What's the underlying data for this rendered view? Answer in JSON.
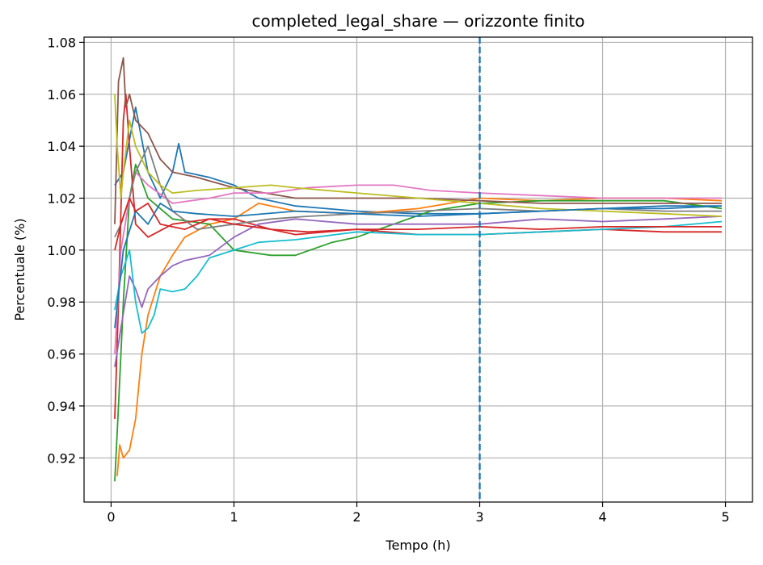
{
  "chart_data": {
    "type": "line",
    "title": "completed_legal_share — orizzonte finito",
    "xlabel": "Tempo (h)",
    "ylabel": "Percentuale (%)",
    "xlim": [
      -0.22,
      5.22
    ],
    "ylim": [
      0.903,
      1.082
    ],
    "xticks": [
      0,
      1,
      2,
      3,
      4,
      5
    ],
    "xtick_labels": [
      "0",
      "1",
      "2",
      "3",
      "4",
      "5"
    ],
    "yticks": [
      0.92,
      0.94,
      0.96,
      0.98,
      1.0,
      1.02,
      1.04,
      1.06,
      1.08
    ],
    "ytick_labels": [
      "0.92",
      "0.94",
      "0.96",
      "0.98",
      "1.00",
      "1.02",
      "1.04",
      "1.06",
      "1.08"
    ],
    "grid": true,
    "vline": {
      "x": 3.0,
      "style": "dashed",
      "color": "#1f77b4"
    },
    "series": [
      {
        "color": "#1f77b4",
        "x": [
          0.03,
          0.1,
          0.2,
          0.3,
          0.4,
          0.5,
          0.55,
          0.6,
          0.7,
          0.8,
          1.0,
          1.2,
          1.5,
          2.0,
          2.5,
          3.0,
          3.5,
          4.0,
          4.5,
          4.97
        ],
        "y": [
          1.025,
          1.03,
          1.055,
          1.03,
          1.02,
          1.03,
          1.041,
          1.03,
          1.029,
          1.028,
          1.025,
          1.02,
          1.017,
          1.015,
          1.014,
          1.014,
          1.015,
          1.016,
          1.017,
          1.017
        ]
      },
      {
        "color": "#ff7f0e",
        "x": [
          0.05,
          0.07,
          0.1,
          0.15,
          0.2,
          0.25,
          0.3,
          0.4,
          0.5,
          0.6,
          0.8,
          1.0,
          1.2,
          1.5,
          2.0,
          2.5,
          3.0,
          3.5,
          4.0,
          4.5,
          4.97
        ],
        "y": [
          0.913,
          0.925,
          0.92,
          0.923,
          0.935,
          0.96,
          0.975,
          0.99,
          0.998,
          1.005,
          1.01,
          1.012,
          1.018,
          1.015,
          1.014,
          1.016,
          1.02,
          1.019,
          1.02,
          1.02,
          1.019
        ]
      },
      {
        "color": "#2ca02c",
        "x": [
          0.03,
          0.06,
          0.1,
          0.15,
          0.2,
          0.3,
          0.5,
          0.8,
          1.0,
          1.3,
          1.5,
          1.8,
          2.0,
          2.3,
          2.6,
          3.0,
          3.5,
          4.0,
          4.5,
          4.97
        ],
        "y": [
          0.911,
          0.94,
          0.98,
          1.02,
          1.033,
          1.02,
          1.012,
          1.01,
          1.0,
          0.998,
          0.998,
          1.003,
          1.005,
          1.01,
          1.015,
          1.018,
          1.019,
          1.019,
          1.019,
          1.016
        ]
      },
      {
        "color": "#d62728",
        "x": [
          0.03,
          0.06,
          0.1,
          0.12,
          0.15,
          0.2,
          0.3,
          0.5,
          0.8,
          1.0,
          1.3,
          1.5,
          2.0,
          2.5,
          3.0,
          3.5,
          4.0,
          4.5,
          4.97
        ],
        "y": [
          0.935,
          0.98,
          1.05,
          1.06,
          1.04,
          1.01,
          1.005,
          1.01,
          1.012,
          1.012,
          1.008,
          1.006,
          1.008,
          1.006,
          1.006,
          1.007,
          1.008,
          1.007,
          1.007
        ]
      },
      {
        "color": "#9467bd",
        "x": [
          0.03,
          0.08,
          0.15,
          0.2,
          0.25,
          0.3,
          0.4,
          0.5,
          0.6,
          0.8,
          1.0,
          1.2,
          1.5,
          2.0,
          2.5,
          3.0,
          3.5,
          4.0,
          4.5,
          4.97
        ],
        "y": [
          0.955,
          0.97,
          0.99,
          0.985,
          0.978,
          0.985,
          0.99,
          0.994,
          0.996,
          0.998,
          1.005,
          1.01,
          1.012,
          1.01,
          1.01,
          1.01,
          1.012,
          1.011,
          1.012,
          1.013
        ]
      },
      {
        "color": "#8c564b",
        "x": [
          0.03,
          0.06,
          0.1,
          0.12,
          0.15,
          0.2,
          0.3,
          0.4,
          0.5,
          0.7,
          1.0,
          1.5,
          2.0,
          2.5,
          3.0,
          3.5,
          4.0,
          4.5,
          4.97
        ],
        "y": [
          1.01,
          1.065,
          1.074,
          1.055,
          1.06,
          1.05,
          1.045,
          1.035,
          1.03,
          1.028,
          1.024,
          1.02,
          1.02,
          1.02,
          1.019,
          1.018,
          1.018,
          1.018,
          1.018
        ]
      },
      {
        "color": "#e377c2",
        "x": [
          0.03,
          0.08,
          0.15,
          0.2,
          0.3,
          0.5,
          0.8,
          1.0,
          1.3,
          1.6,
          2.0,
          2.3,
          2.6,
          3.0,
          3.5,
          4.0,
          4.5,
          4.97
        ],
        "y": [
          0.96,
          1.0,
          1.02,
          1.03,
          1.025,
          1.018,
          1.02,
          1.022,
          1.022,
          1.024,
          1.025,
          1.025,
          1.023,
          1.022,
          1.021,
          1.02,
          1.02,
          1.02
        ]
      },
      {
        "color": "#7f7f7f",
        "x": [
          0.03,
          0.08,
          0.15,
          0.2,
          0.3,
          0.4,
          0.5,
          0.7,
          1.0,
          1.3,
          1.6,
          2.0,
          2.5,
          3.0,
          3.5,
          4.0,
          4.5,
          4.97
        ],
        "y": [
          1.005,
          1.01,
          1.02,
          1.03,
          1.04,
          1.025,
          1.015,
          1.008,
          1.01,
          1.012,
          1.013,
          1.014,
          1.015,
          1.016,
          1.015,
          1.016,
          1.015,
          1.015
        ]
      },
      {
        "color": "#bcbd22",
        "x": [
          0.03,
          0.05,
          0.08,
          0.1,
          0.15,
          0.2,
          0.3,
          0.4,
          0.5,
          0.7,
          1.0,
          1.3,
          1.5,
          2.0,
          2.5,
          3.0,
          3.5,
          4.0,
          4.5,
          4.97
        ],
        "y": [
          1.06,
          1.04,
          1.02,
          1.03,
          1.05,
          1.04,
          1.03,
          1.025,
          1.022,
          1.023,
          1.024,
          1.025,
          1.024,
          1.022,
          1.02,
          1.018,
          1.016,
          1.015,
          1.014,
          1.013
        ]
      },
      {
        "color": "#17becf",
        "x": [
          0.03,
          0.08,
          0.15,
          0.2,
          0.25,
          0.3,
          0.35,
          0.4,
          0.5,
          0.6,
          0.7,
          0.8,
          1.0,
          1.2,
          1.5,
          2.0,
          2.5,
          3.0,
          3.5,
          4.0,
          4.5,
          4.97
        ],
        "y": [
          0.977,
          0.99,
          1.0,
          0.98,
          0.968,
          0.97,
          0.975,
          0.985,
          0.984,
          0.985,
          0.99,
          0.997,
          1.0,
          1.003,
          1.004,
          1.007,
          1.006,
          1.006,
          1.007,
          1.008,
          1.009,
          1.011
        ]
      },
      {
        "color": "#1f77b4",
        "x": [
          0.03,
          0.1,
          0.2,
          0.3,
          0.4,
          0.5,
          0.7,
          1.0,
          1.5,
          2.0,
          2.5,
          3.0,
          3.5,
          4.0,
          4.5,
          4.97
        ],
        "y": [
          0.97,
          1.0,
          1.015,
          1.01,
          1.018,
          1.015,
          1.014,
          1.013,
          1.015,
          1.014,
          1.013,
          1.014,
          1.015,
          1.016,
          1.016,
          1.017
        ]
      },
      {
        "color": "#d62728",
        "x": [
          0.03,
          0.08,
          0.15,
          0.2,
          0.3,
          0.4,
          0.6,
          0.8,
          1.0,
          1.3,
          1.6,
          2.0,
          2.5,
          3.0,
          3.5,
          4.0,
          4.5,
          4.97
        ],
        "y": [
          1.0,
          1.01,
          1.02,
          1.015,
          1.018,
          1.01,
          1.008,
          1.012,
          1.01,
          1.008,
          1.007,
          1.008,
          1.008,
          1.009,
          1.008,
          1.009,
          1.009,
          1.009
        ]
      }
    ]
  }
}
